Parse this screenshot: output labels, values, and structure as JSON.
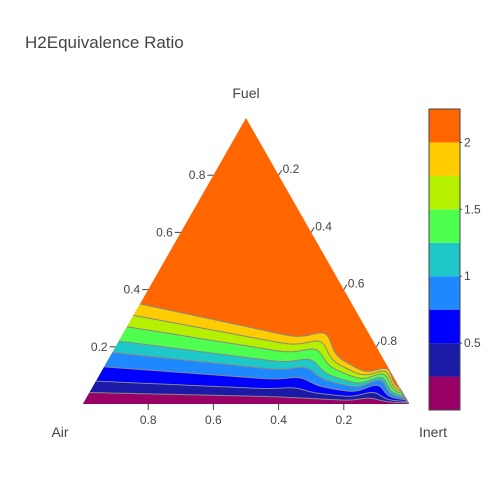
{
  "chart_data": {
    "type": "ternary-contour",
    "title": "H2Equivalence Ratio",
    "axes": {
      "top": {
        "title": "Fuel",
        "ticks": [
          0.2,
          0.4,
          0.6,
          0.8
        ]
      },
      "left": {
        "title": "Air",
        "ticks": [
          0.2,
          0.4,
          0.6,
          0.8
        ]
      },
      "right": {
        "title": "Inert",
        "ticks": [
          0.2,
          0.4,
          0.6,
          0.8
        ]
      }
    },
    "colorbar": {
      "min": 0,
      "max": 2,
      "tick_labels": [
        "0.5",
        "1",
        "1.5",
        "2"
      ],
      "tick_values": [
        0.5,
        1,
        1.5,
        2
      ],
      "levels": [
        {
          "from": 0.0,
          "to": 0.25,
          "color": "#990066"
        },
        {
          "from": 0.25,
          "to": 0.5,
          "color": "#1a1aa6"
        },
        {
          "from": 0.5,
          "to": 0.75,
          "color": "#0000ff"
        },
        {
          "from": 0.75,
          "to": 1.0,
          "color": "#1e88ff"
        },
        {
          "from": 1.0,
          "to": 1.25,
          "color": "#1fc8c8"
        },
        {
          "from": 1.25,
          "to": 1.5,
          "color": "#4fff4f"
        },
        {
          "from": 1.5,
          "to": 1.75,
          "color": "#b4f000"
        },
        {
          "from": 1.75,
          "to": 2.0,
          "color": "#ffcc00"
        },
        {
          "from": 2.0,
          "to": 2.25,
          "color": "#ff6600"
        }
      ]
    },
    "contour_boundaries_fuel_fraction_at_inert0": [
      0.04,
      0.08,
      0.13,
      0.18,
      0.22,
      0.27,
      0.31,
      0.35
    ],
    "line_color": "#888888"
  }
}
